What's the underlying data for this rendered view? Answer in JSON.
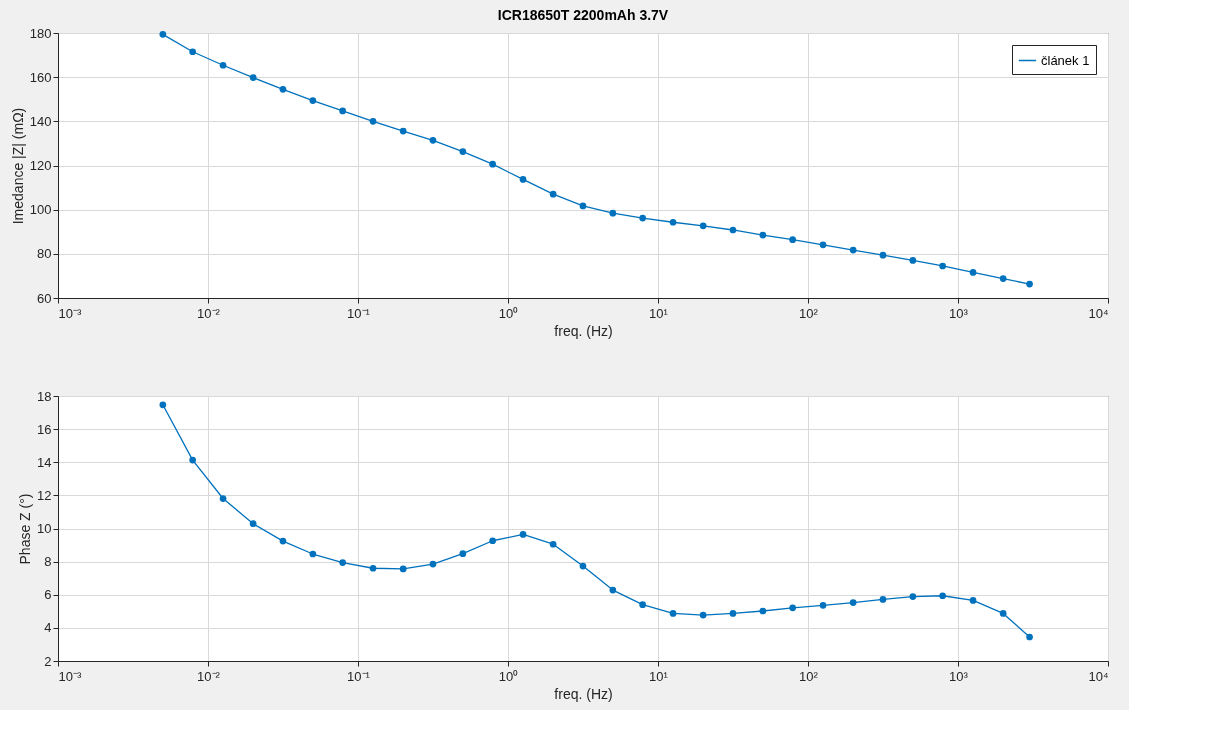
{
  "chart_data": [
    {
      "type": "line",
      "title": "ICR18650T 2200mAh 3.7V",
      "xlabel": "freq. (Hz)",
      "ylabel": "Imedance  |Z| (mΩ)",
      "log": "x",
      "grid": true,
      "legend": "top right",
      "marker": "circle",
      "line_style": "solid",
      "x": [
        0.005,
        0.0079,
        0.0126,
        0.02,
        0.0316,
        0.05,
        0.079,
        0.126,
        0.2,
        0.316,
        0.5,
        0.79,
        1.26,
        2,
        3.16,
        5,
        7.9,
        12.6,
        20,
        31.6,
        50,
        79,
        126,
        200,
        316,
        500,
        790,
        1260,
        2000,
        3000
      ],
      "series": [
        {
          "name": "článek 1",
          "color": "#0072bd",
          "values": [
            179.4,
            171.5,
            165.4,
            159.8,
            154.5,
            149.4,
            144.7,
            140.0,
            135.6,
            131.4,
            126.3,
            120.6,
            113.7,
            107.0,
            101.7,
            98.4,
            96.2,
            94.3,
            92.7,
            90.8,
            88.5,
            86.4,
            84.1,
            81.7,
            79.4,
            77.0,
            74.5,
            71.6,
            68.8,
            66.3
          ]
        }
      ],
      "xlim": [
        0.001,
        10000
      ],
      "ylim": [
        60,
        180
      ],
      "xticks": [
        {
          "value": 0.001,
          "label": "10⁻³"
        },
        {
          "value": 0.01,
          "label": "10⁻²"
        },
        {
          "value": 0.1,
          "label": "10⁻¹"
        },
        {
          "value": 1,
          "label": "10⁰"
        },
        {
          "value": 10,
          "label": "10¹"
        },
        {
          "value": 100,
          "label": "10²"
        },
        {
          "value": 1000,
          "label": "10³"
        },
        {
          "value": 10000,
          "label": "10⁴"
        }
      ],
      "yticks": [
        60,
        80,
        100,
        120,
        140,
        160,
        180
      ]
    },
    {
      "type": "line",
      "xlabel": "freq. (Hz)",
      "ylabel": "Phase Z (°)",
      "log": "x",
      "grid": true,
      "marker": "circle",
      "line_style": "solid",
      "x": [
        0.005,
        0.0079,
        0.0126,
        0.02,
        0.0316,
        0.05,
        0.079,
        0.126,
        0.2,
        0.316,
        0.5,
        0.79,
        1.26,
        2,
        3.16,
        5,
        7.9,
        12.6,
        20,
        31.6,
        50,
        79,
        126,
        200,
        316,
        500,
        790,
        1260,
        2000,
        3000
      ],
      "series": [
        {
          "color": "#0072bd",
          "values": [
            17.47,
            14.13,
            11.81,
            10.29,
            9.24,
            8.46,
            7.94,
            7.6,
            7.56,
            7.85,
            8.48,
            9.26,
            9.64,
            9.05,
            7.73,
            6.28,
            5.4,
            4.87,
            4.77,
            4.87,
            5.02,
            5.21,
            5.36,
            5.53,
            5.72,
            5.89,
            5.94,
            5.66,
            4.87,
            3.45
          ]
        }
      ],
      "xlim": [
        0.001,
        10000
      ],
      "ylim": [
        2,
        18
      ],
      "xticks": [
        {
          "value": 0.001,
          "label": "10⁻³"
        },
        {
          "value": 0.01,
          "label": "10⁻²"
        },
        {
          "value": 0.1,
          "label": "10⁻¹"
        },
        {
          "value": 1,
          "label": "10⁰"
        },
        {
          "value": 10,
          "label": "10¹"
        },
        {
          "value": 100,
          "label": "10²"
        },
        {
          "value": 1000,
          "label": "10³"
        },
        {
          "value": 10000,
          "label": "10⁴"
        }
      ],
      "yticks": [
        2,
        4,
        6,
        8,
        10,
        12,
        14,
        16,
        18
      ]
    }
  ]
}
